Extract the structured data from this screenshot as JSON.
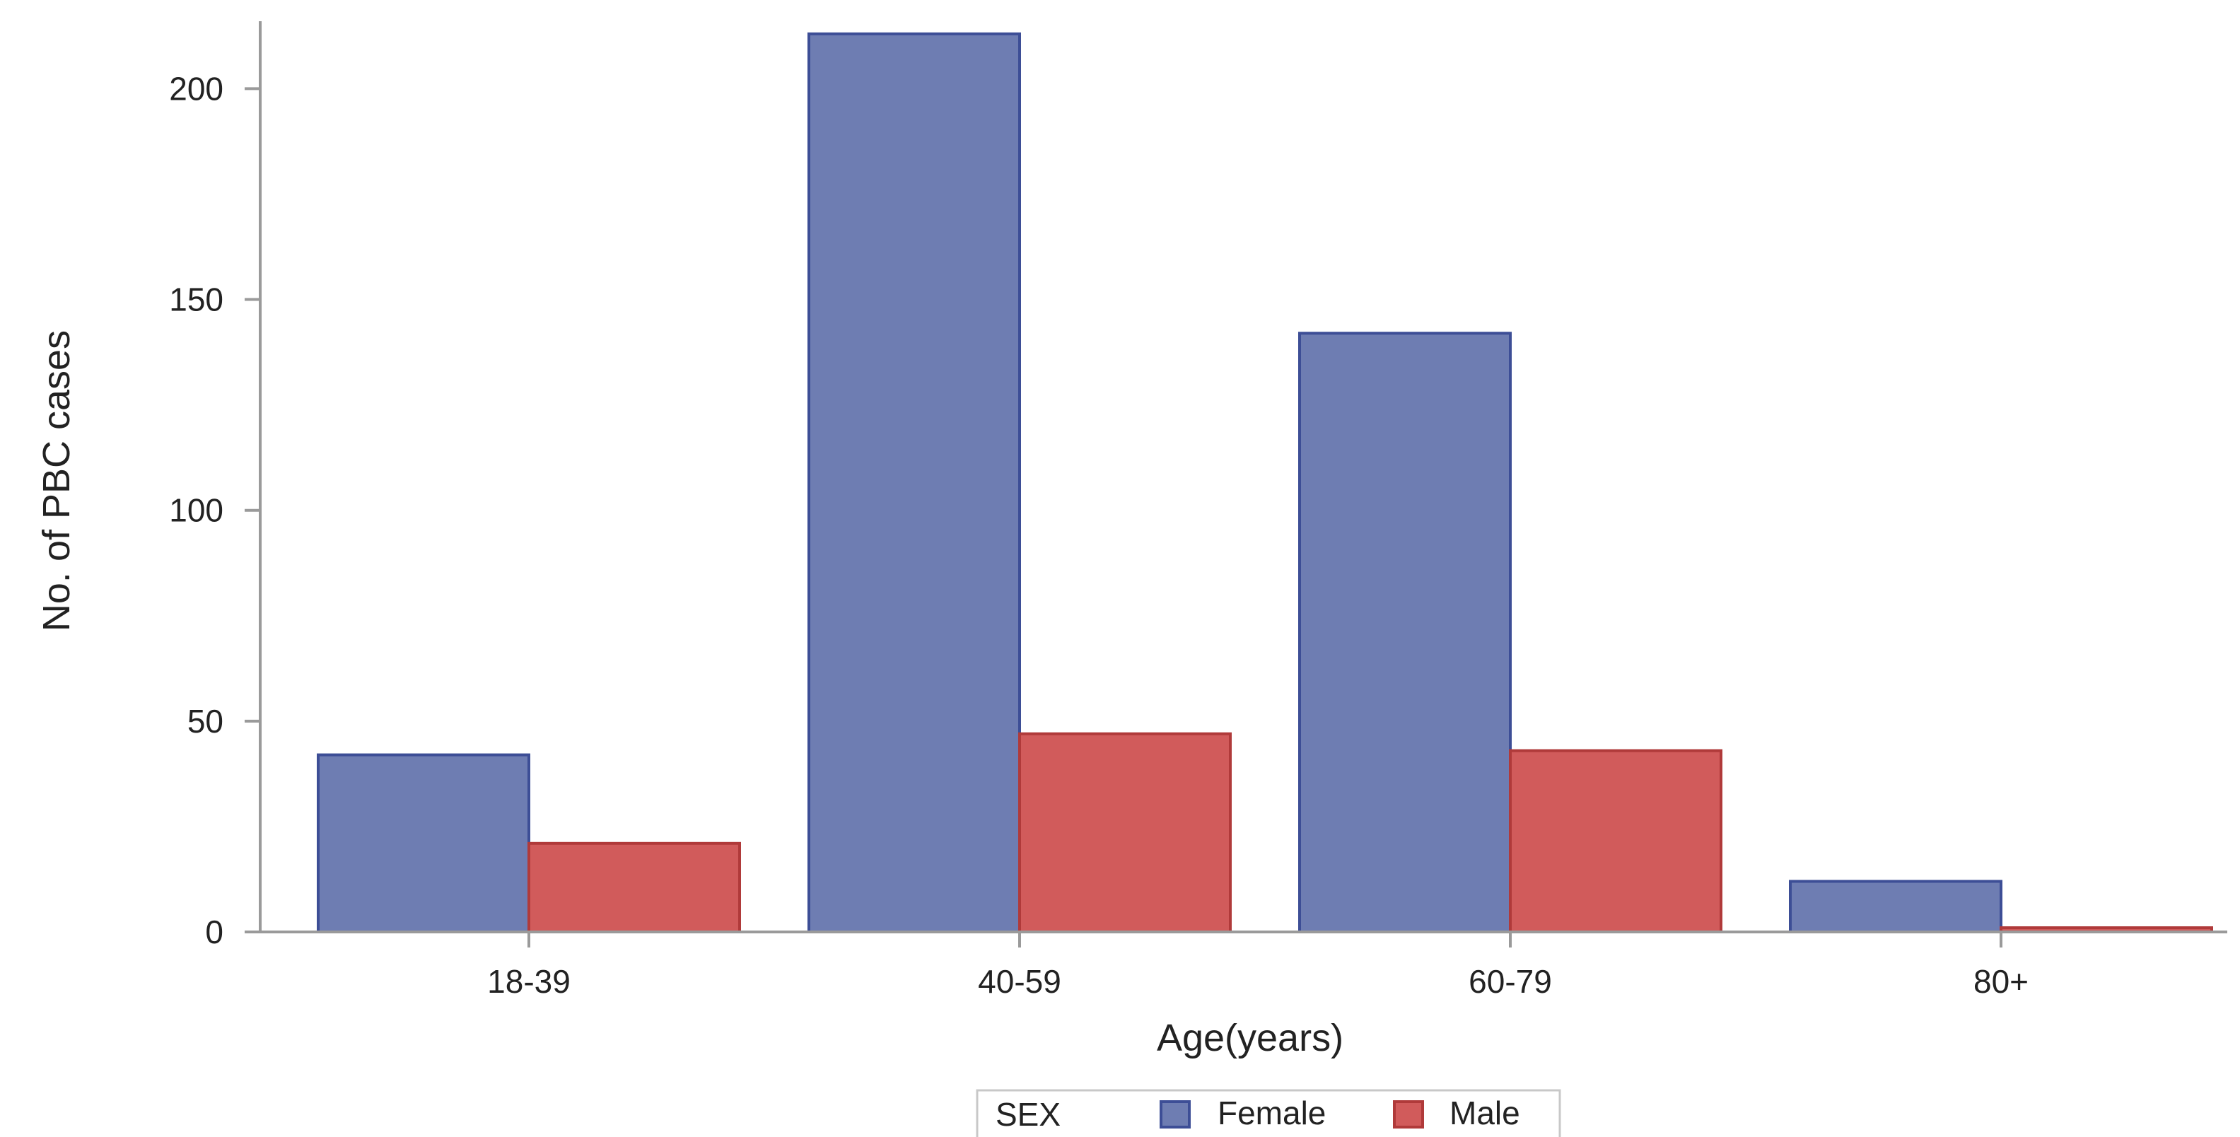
{
  "chart_data": {
    "type": "bar",
    "categories": [
      "18-39",
      "40-59",
      "60-79",
      "80+"
    ],
    "series": [
      {
        "name": "Female",
        "values": [
          42,
          213,
          142,
          12
        ],
        "color": "#6e7db2",
        "stroke": "#3d4e96"
      },
      {
        "name": "Male",
        "values": [
          21,
          47,
          43,
          1
        ],
        "color": "#d15b5b",
        "stroke": "#b03a3a"
      }
    ],
    "xlabel": "Age(years)",
    "ylabel": "No. of PBC cases",
    "ylim": [
      0,
      216
    ],
    "yticks": [
      0,
      50,
      100,
      150,
      200
    ],
    "grid": false,
    "legend": {
      "title": "SEX",
      "placement": "bottom-center"
    },
    "axis_color": "#9a9a9a"
  }
}
